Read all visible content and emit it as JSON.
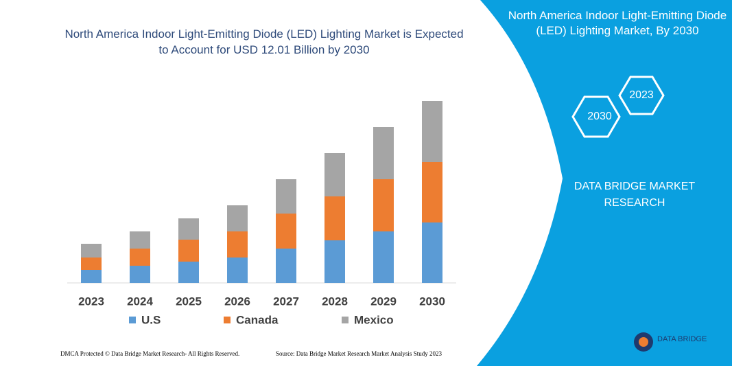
{
  "chart_data": {
    "type": "stacked-bar",
    "title": "North America Indoor Light-Emitting Diode (LED) Lighting Market is Expected to Account for USD 12.01 Billion by 2030",
    "categories": [
      "2023",
      "2024",
      "2025",
      "2026",
      "2027",
      "2028",
      "2029",
      "2030"
    ],
    "series": [
      {
        "name": "U.S",
        "color": "#5b9bd5",
        "values": [
          19,
          25,
          31,
          37,
          50,
          62,
          75,
          88
        ]
      },
      {
        "name": "Canada",
        "color": "#ed7d31",
        "values": [
          18,
          25,
          32,
          38,
          51,
          64,
          76,
          88
        ]
      },
      {
        "name": "Mexico",
        "color": "#a5a5a5",
        "values": [
          20,
          25,
          31,
          38,
          50,
          63,
          76,
          89
        ]
      }
    ],
    "ylim": [
      0,
      300
    ]
  },
  "panel": {
    "title": "North America Indoor Light-Emitting Diode (LED) Lighting Market, By 2030",
    "hexagons": [
      "2023",
      "2030"
    ],
    "brand": "DATA BRIDGE MARKET RESEARCH"
  },
  "footer": {
    "left": "DMCA Protected © Data Bridge Market Research- All Rights Reserved.",
    "right": "Source: Data Bridge Market Research Market Analysis Study 2023"
  },
  "logo": "DATA BRIDGE"
}
